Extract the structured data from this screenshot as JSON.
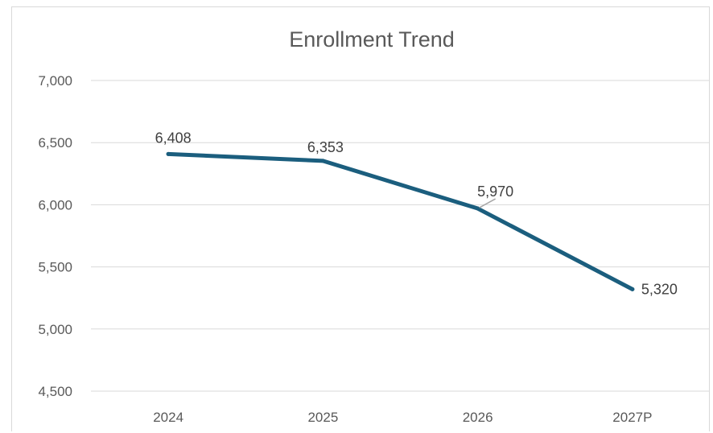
{
  "chart_data": {
    "type": "line",
    "title": "Enrollment Trend",
    "categories": [
      "2024",
      "2025",
      "2026",
      "2027P"
    ],
    "series": [
      {
        "values": [
          6408,
          6353,
          5970,
          5320
        ],
        "color": "#1b5e7e"
      }
    ],
    "data_labels": [
      "6,408",
      "6,353",
      "5,970",
      "5,320"
    ],
    "ylim": [
      4500,
      7000
    ],
    "yticks": [
      4500,
      5000,
      5500,
      6000,
      6500,
      7000
    ],
    "ytick_labels": [
      "4,500",
      "5,000",
      "5,500",
      "6,000",
      "6,500",
      "7,000"
    ],
    "grid": true,
    "legend": "none"
  }
}
